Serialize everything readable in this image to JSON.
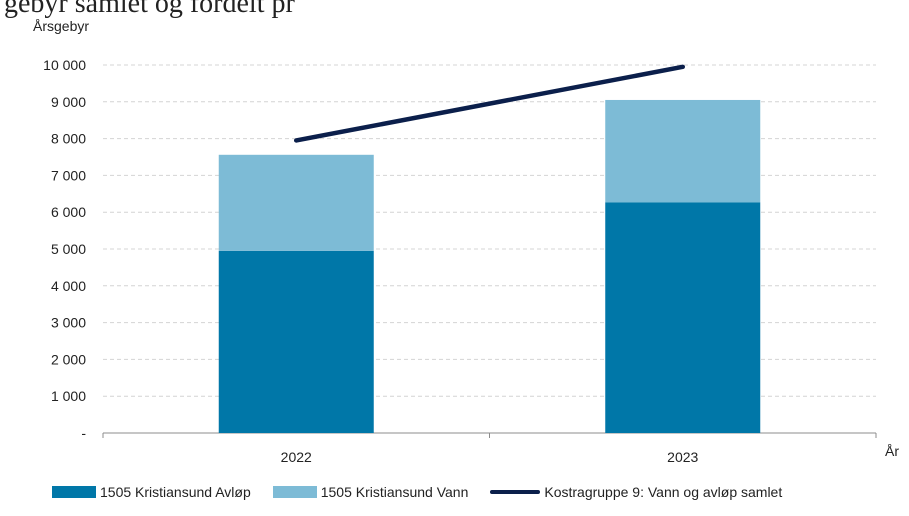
{
  "page": {
    "title_fragment": "gebyr samlet og fordelt pr"
  },
  "chart_data": {
    "type": "bar",
    "stacked": true,
    "categories": [
      "2022",
      "2023"
    ],
    "ylabel": "Årsgebyr",
    "xlabel": "År",
    "ylim": [
      0,
      10000
    ],
    "yticks": [
      0,
      1000,
      2000,
      3000,
      4000,
      5000,
      6000,
      7000,
      8000,
      9000,
      10000
    ],
    "ytick_labels": [
      "-",
      "1 000",
      "2 000",
      "3 000",
      "4 000",
      "5 000",
      "6 000",
      "7 000",
      "8 000",
      "9 000",
      "10 000"
    ],
    "grid": true,
    "legend_position": "bottom",
    "series": [
      {
        "name": "1505 Kristiansund Avløp",
        "type": "bar",
        "color": "#0077a8",
        "values": [
          4950,
          6270
        ]
      },
      {
        "name": "1505 Kristiansund Vann",
        "type": "bar",
        "color": "#7dbbd6",
        "values": [
          2610,
          2780
        ]
      },
      {
        "name": "Kostragruppe 9: Vann og avløp samlet",
        "type": "line",
        "color": "#0b1f4b",
        "values": [
          7950,
          9950
        ]
      }
    ]
  }
}
